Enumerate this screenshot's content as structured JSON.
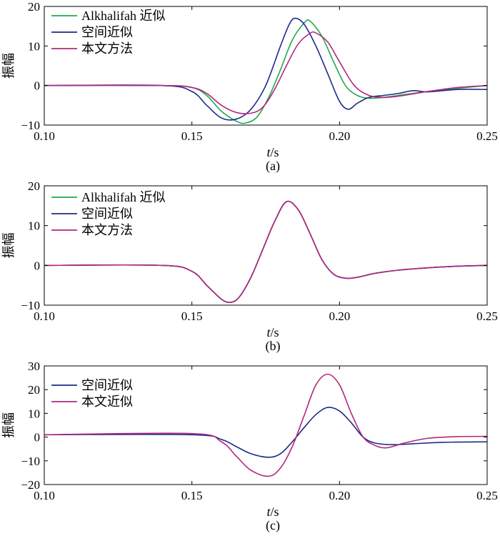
{
  "chart_data": [
    {
      "type": "line",
      "panel_caption": "(a)",
      "xlabel_italic": "t",
      "xlabel_unit": "/s",
      "ylabel": "振幅",
      "xlim": [
        0.1,
        0.25
      ],
      "ylim": [
        -10,
        20
      ],
      "xticks": [
        0.1,
        0.15,
        0.2,
        0.25
      ],
      "xtick_labels": [
        "0.10",
        "0.15",
        "0.20",
        "0.25"
      ],
      "yticks": [
        -10,
        0,
        10,
        20
      ],
      "ytick_labels": [
        "−10",
        "0",
        "10",
        "20"
      ],
      "legend_position": "top-left",
      "series": [
        {
          "name": "Alkhalifah 近似",
          "color": "#1faa4a",
          "x": [
            0.1,
            0.14,
            0.15,
            0.155,
            0.16,
            0.165,
            0.168,
            0.172,
            0.176,
            0.18,
            0.184,
            0.188,
            0.19,
            0.194,
            0.198,
            0.202,
            0.206,
            0.21,
            0.215,
            0.22,
            0.23,
            0.24,
            0.25
          ],
          "y": [
            0,
            0,
            -0.5,
            -2.5,
            -6.5,
            -9,
            -9.5,
            -8,
            -3,
            4,
            11.5,
            15.8,
            16.3,
            12.5,
            6,
            0,
            -2.5,
            -3.2,
            -3,
            -2.5,
            -1.5,
            -0.7,
            0
          ]
        },
        {
          "name": "空间近似",
          "color": "#1e2a8a",
          "x": [
            0.1,
            0.14,
            0.15,
            0.155,
            0.16,
            0.165,
            0.17,
            0.175,
            0.18,
            0.183,
            0.185,
            0.188,
            0.192,
            0.196,
            0.2,
            0.203,
            0.206,
            0.21,
            0.215,
            0.22,
            0.225,
            0.23,
            0.24,
            0.25
          ],
          "y": [
            0,
            0,
            -1.5,
            -5,
            -8.2,
            -8.5,
            -6,
            0,
            10,
            15.5,
            17,
            15.5,
            10,
            3,
            -4,
            -6,
            -4.5,
            -3,
            -2.5,
            -2,
            -1.3,
            -1.6,
            -1,
            -1
          ]
        },
        {
          "name": "本文方法",
          "color": "#b3267f",
          "x": [
            0.1,
            0.14,
            0.15,
            0.155,
            0.16,
            0.165,
            0.17,
            0.174,
            0.178,
            0.182,
            0.186,
            0.19,
            0.192,
            0.196,
            0.2,
            0.205,
            0.21,
            0.215,
            0.22,
            0.23,
            0.24,
            0.25
          ],
          "y": [
            0,
            0,
            -0.5,
            -2,
            -5,
            -6.8,
            -7,
            -5.5,
            -1,
            5,
            10.5,
            13.2,
            13.3,
            11,
            6,
            0,
            -2.5,
            -3,
            -2.7,
            -1.5,
            -0.5,
            0
          ]
        }
      ]
    },
    {
      "type": "line",
      "panel_caption": "(b)",
      "xlabel_italic": "t",
      "xlabel_unit": "/s",
      "ylabel": "振幅",
      "xlim": [
        0.1,
        0.25
      ],
      "ylim": [
        -10,
        20
      ],
      "xticks": [
        0.1,
        0.15,
        0.2,
        0.25
      ],
      "xtick_labels": [
        "0.10",
        "0.15",
        "0.20",
        "0.25"
      ],
      "yticks": [
        -10,
        0,
        10,
        20
      ],
      "ytick_labels": [
        "−10",
        "0",
        "10",
        "20"
      ],
      "legend_position": "top-left",
      "series": [
        {
          "name": "Alkhalifah 近似",
          "color": "#1faa4a",
          "x": [
            0.1,
            0.14,
            0.15,
            0.155,
            0.16,
            0.163,
            0.166,
            0.17,
            0.174,
            0.178,
            0.182,
            0.186,
            0.19,
            0.194,
            0.198,
            0.202,
            0.206,
            0.212,
            0.22,
            0.23,
            0.24,
            0.25
          ],
          "y": [
            0,
            0,
            -1.5,
            -5,
            -8.5,
            -9.3,
            -8,
            -3,
            4,
            11,
            16,
            14,
            8,
            1.5,
            -2.2,
            -3.2,
            -3,
            -2,
            -1.2,
            -0.6,
            -0.2,
            0
          ]
        },
        {
          "name": "空间近似",
          "color": "#1e2a8a",
          "x": [
            0.1,
            0.14,
            0.15,
            0.155,
            0.16,
            0.163,
            0.166,
            0.17,
            0.174,
            0.178,
            0.182,
            0.186,
            0.19,
            0.194,
            0.198,
            0.202,
            0.206,
            0.212,
            0.22,
            0.23,
            0.24,
            0.25
          ],
          "y": [
            0,
            0,
            -1.5,
            -5,
            -8.5,
            -9.3,
            -8,
            -3,
            4,
            11,
            16,
            14,
            8,
            1.5,
            -2.2,
            -3.2,
            -3,
            -2,
            -1.2,
            -0.6,
            -0.2,
            0
          ]
        },
        {
          "name": "本文方法",
          "color": "#b3267f",
          "x": [
            0.1,
            0.14,
            0.15,
            0.155,
            0.16,
            0.163,
            0.166,
            0.17,
            0.174,
            0.178,
            0.182,
            0.186,
            0.19,
            0.194,
            0.198,
            0.202,
            0.206,
            0.212,
            0.22,
            0.23,
            0.24,
            0.25
          ],
          "y": [
            0,
            0,
            -1.5,
            -5,
            -8.5,
            -9.3,
            -8,
            -3,
            4,
            11,
            16,
            14,
            8,
            1.5,
            -2.2,
            -3.2,
            -3,
            -2,
            -1.2,
            -0.6,
            -0.2,
            0
          ]
        }
      ]
    },
    {
      "type": "line",
      "panel_caption": "(c)",
      "xlabel_italic": "t",
      "xlabel_unit": "/s",
      "ylabel": "振幅",
      "xlim": [
        0.1,
        0.25
      ],
      "ylim": [
        -20,
        30
      ],
      "xticks": [
        0.1,
        0.15,
        0.2,
        0.25
      ],
      "xtick_labels": [
        "0.10",
        "0.15",
        "0.20",
        "0.25"
      ],
      "yticks": [
        -20,
        -10,
        0,
        10,
        20,
        30
      ],
      "ytick_labels": [
        "−20",
        "−10",
        "0",
        "10",
        "20",
        "30"
      ],
      "legend_position": "top-left",
      "series": [
        {
          "name": "空间近似",
          "color": "#1e2a8a",
          "x": [
            0.1,
            0.15,
            0.16,
            0.165,
            0.17,
            0.176,
            0.18,
            0.184,
            0.188,
            0.192,
            0.196,
            0.2,
            0.204,
            0.208,
            0.212,
            0.218,
            0.225,
            0.235,
            0.25
          ],
          "y": [
            1,
            1,
            -1,
            -4,
            -7,
            -8.5,
            -7,
            -2,
            4,
            9.5,
            12.5,
            11,
            6,
            0,
            -2.5,
            -3.2,
            -2.8,
            -2.2,
            -2
          ]
        },
        {
          "name": "本文近似",
          "color": "#b3267f",
          "x": [
            0.1,
            0.15,
            0.16,
            0.165,
            0.17,
            0.176,
            0.18,
            0.184,
            0.188,
            0.192,
            0.196,
            0.2,
            0.204,
            0.208,
            0.212,
            0.216,
            0.222,
            0.23,
            0.24,
            0.25
          ],
          "y": [
            1,
            1.5,
            -2,
            -8,
            -14,
            -16.5,
            -13,
            -4,
            9,
            22,
            26.5,
            22,
            10,
            0,
            -3.5,
            -4.5,
            -2.5,
            -0.5,
            0.2,
            0.3
          ]
        }
      ]
    }
  ]
}
